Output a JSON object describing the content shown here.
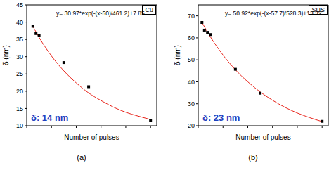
{
  "chart_data": [
    {
      "type": "scatter",
      "title": "Cu",
      "x_label": "Number of pulses",
      "y_label": "δ (nm)",
      "xlim": [
        0,
        1050
      ],
      "xticks": [
        0,
        200,
        400,
        600,
        800,
        1000
      ],
      "ylim": [
        10,
        45
      ],
      "yticks": [
        10,
        15,
        20,
        25,
        30,
        35,
        40,
        45
      ],
      "tick_labels": "y",
      "grid": false,
      "annotations": [
        {
          "text": "y= 30.97*exp(-(x-50)/461.2)+7.85",
          "color": "#000000"
        },
        {
          "text": "δ: 14 nm",
          "color": "#1f3fbf"
        },
        {
          "text": "(a)",
          "color": "#000000"
        }
      ],
      "series": [
        {
          "type": "scatter",
          "color": "#000000",
          "marker": "square",
          "x": [
            50,
            75,
            100,
            300,
            500,
            1000
          ],
          "values": [
            38.8,
            36.7,
            36.1,
            28.3,
            21.3,
            11.6
          ]
        },
        {
          "type": "line",
          "color": "#e8231a",
          "line_style": "solid",
          "x": [
            50,
            100,
            200,
            300,
            400,
            500,
            600,
            700,
            800,
            900,
            1000
          ],
          "values": [
            38.8,
            35.6,
            30.2,
            25.9,
            22.4,
            19.5,
            17.3,
            15.4,
            13.9,
            12.8,
            11.8
          ]
        }
      ]
    },
    {
      "type": "scatter",
      "title": "SUS",
      "x_label": "Number of pulses",
      "y_label": "δ (nm)",
      "xlim": [
        0,
        1050
      ],
      "xticks": [
        0,
        200,
        400,
        600,
        800,
        1000
      ],
      "ylim": [
        20,
        75
      ],
      "yticks": [
        20,
        30,
        40,
        50,
        60,
        70
      ],
      "tick_labels": "y",
      "grid": false,
      "annotations": [
        {
          "text": "y= 50.92*exp(-(x-57.7)/528.3)+13.32",
          "color": "#000000"
        },
        {
          "text": "δ: 23 nm",
          "color": "#1f3fbf"
        },
        {
          "text": "(b)",
          "color": "#000000"
        }
      ],
      "series": [
        {
          "type": "scatter",
          "color": "#000000",
          "marker": "square",
          "x": [
            30,
            50,
            75,
            100,
            300,
            500,
            1000
          ],
          "values": [
            67.0,
            63.5,
            62.5,
            61.5,
            45.7,
            34.8,
            22.0
          ]
        },
        {
          "type": "line",
          "color": "#e8231a",
          "line_style": "solid",
          "x": [
            30,
            100,
            200,
            300,
            400,
            500,
            600,
            700,
            800,
            900,
            1000
          ],
          "values": [
            67.0,
            60.3,
            52.2,
            45.5,
            40.0,
            35.4,
            31.6,
            28.4,
            25.8,
            23.7,
            21.9
          ]
        }
      ]
    }
  ]
}
